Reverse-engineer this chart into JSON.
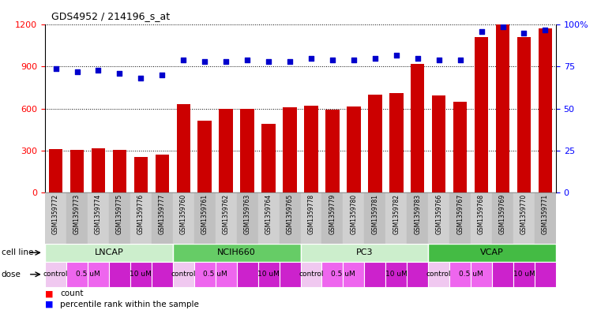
{
  "title": "GDS4952 / 214196_s_at",
  "samples": [
    "GSM1359772",
    "GSM1359773",
    "GSM1359774",
    "GSM1359775",
    "GSM1359776",
    "GSM1359777",
    "GSM1359760",
    "GSM1359761",
    "GSM1359762",
    "GSM1359763",
    "GSM1359764",
    "GSM1359765",
    "GSM1359778",
    "GSM1359779",
    "GSM1359780",
    "GSM1359781",
    "GSM1359782",
    "GSM1359783",
    "GSM1359766",
    "GSM1359767",
    "GSM1359768",
    "GSM1359769",
    "GSM1359770",
    "GSM1359771"
  ],
  "bar_values": [
    310,
    305,
    315,
    305,
    250,
    270,
    630,
    510,
    595,
    600,
    490,
    610,
    620,
    590,
    615,
    700,
    710,
    920,
    695,
    650,
    1110,
    1200,
    1110,
    1175
  ],
  "percentile_values": [
    74,
    72,
    73,
    71,
    68,
    70,
    79,
    78,
    78,
    79,
    78,
    78,
    80,
    79,
    79,
    80,
    82,
    80,
    79,
    79,
    96,
    99,
    95,
    97
  ],
  "bar_color": "#cc0000",
  "dot_color": "#0000cc",
  "ylim_left": [
    0,
    1200
  ],
  "ylim_right": [
    0,
    100
  ],
  "yticks_left": [
    0,
    300,
    600,
    900,
    1200
  ],
  "yticks_right": [
    0,
    25,
    50,
    75,
    100
  ],
  "cell_lines": [
    {
      "label": "LNCAP",
      "start": 0,
      "end": 6,
      "color": "#cceecc"
    },
    {
      "label": "NCIH660",
      "start": 6,
      "end": 12,
      "color": "#66cc66"
    },
    {
      "label": "PC3",
      "start": 12,
      "end": 18,
      "color": "#cceecc"
    },
    {
      "label": "VCAP",
      "start": 18,
      "end": 24,
      "color": "#44bb44"
    }
  ],
  "dose_color_map": {
    "control": "#f0c8f0",
    "0.5 uM": "#ee66ee",
    "10 uM": "#cc22cc"
  },
  "dose_per_sample": [
    "control",
    "0.5 uM",
    "0.5 uM",
    "10 uM",
    "10 uM",
    "10 uM",
    "control",
    "0.5 uM",
    "0.5 uM",
    "10 uM",
    "10 uM",
    "10 uM",
    "control",
    "0.5 uM",
    "0.5 uM",
    "10 uM",
    "10 uM",
    "10 uM",
    "control",
    "0.5 uM",
    "0.5 uM",
    "10 uM",
    "10 uM",
    "10 uM"
  ],
  "dose_group_defs": [
    [
      0,
      1,
      "control"
    ],
    [
      1,
      3,
      "0.5 uM"
    ],
    [
      3,
      6,
      "10 uM"
    ],
    [
      6,
      7,
      "control"
    ],
    [
      7,
      9,
      "0.5 uM"
    ],
    [
      9,
      12,
      "10 uM"
    ],
    [
      12,
      13,
      "control"
    ],
    [
      13,
      15,
      "0.5 uM"
    ],
    [
      15,
      18,
      "10 uM"
    ],
    [
      18,
      19,
      "control"
    ],
    [
      19,
      21,
      "0.5 uM"
    ],
    [
      21,
      24,
      "10 uM"
    ]
  ],
  "bg_plot": "#ffffff",
  "label_row_colors": [
    "#d0d0d0",
    "#c0c0c0"
  ]
}
